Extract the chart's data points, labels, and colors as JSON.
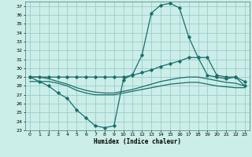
{
  "title": "",
  "xlabel": "Humidex (Indice chaleur)",
  "bg_color": "#cceee8",
  "grid_color": "#99cccc",
  "line_color": "#1a6e6a",
  "xlim": [
    -0.5,
    23.5
  ],
  "ylim": [
    23,
    37.5
  ],
  "xticks": [
    0,
    1,
    2,
    3,
    4,
    5,
    6,
    7,
    8,
    9,
    10,
    11,
    12,
    13,
    14,
    15,
    16,
    17,
    18,
    19,
    20,
    21,
    22,
    23
  ],
  "yticks": [
    23,
    24,
    25,
    26,
    27,
    28,
    29,
    30,
    31,
    32,
    33,
    34,
    35,
    36,
    37
  ],
  "line1_x": [
    0,
    1,
    2,
    3,
    4,
    5,
    6,
    7,
    8,
    9,
    10,
    11,
    12,
    13,
    14,
    15,
    16,
    17,
    18,
    19,
    20,
    21,
    22,
    23
  ],
  "line1_y": [
    29.0,
    28.5,
    28.0,
    27.2,
    26.6,
    25.3,
    24.4,
    23.5,
    23.3,
    23.5,
    28.7,
    29.3,
    31.5,
    36.2,
    37.1,
    37.3,
    36.8,
    33.5,
    31.2,
    29.2,
    29.0,
    28.8,
    29.0,
    28.0
  ],
  "line2_x": [
    0,
    1,
    2,
    3,
    4,
    5,
    6,
    7,
    8,
    9,
    10,
    11,
    12,
    13,
    14,
    15,
    16,
    17,
    18,
    19,
    20,
    21,
    22,
    23
  ],
  "line2_y": [
    29.0,
    29.0,
    29.0,
    29.0,
    29.0,
    29.0,
    29.0,
    29.0,
    29.0,
    29.0,
    29.0,
    29.2,
    29.5,
    29.8,
    30.2,
    30.5,
    30.8,
    31.2,
    31.2,
    31.2,
    29.2,
    29.0,
    29.0,
    28.5
  ],
  "line3_x": [
    0,
    1,
    2,
    3,
    4,
    5,
    6,
    7,
    8,
    9,
    10,
    11,
    12,
    13,
    14,
    15,
    16,
    17,
    18,
    19,
    20,
    21,
    22,
    23
  ],
  "line3_y": [
    28.5,
    28.5,
    28.5,
    28.3,
    28.0,
    27.5,
    27.2,
    27.0,
    27.0,
    27.0,
    27.2,
    27.4,
    27.6,
    27.8,
    28.0,
    28.2,
    28.3,
    28.4,
    28.4,
    28.2,
    28.0,
    27.9,
    27.8,
    27.8
  ],
  "line4_x": [
    0,
    1,
    2,
    3,
    4,
    5,
    6,
    7,
    8,
    9,
    10,
    11,
    12,
    13,
    14,
    15,
    16,
    17,
    18,
    19,
    20,
    21,
    22,
    23
  ],
  "line4_y": [
    29.0,
    29.0,
    28.8,
    28.5,
    28.2,
    27.8,
    27.5,
    27.3,
    27.2,
    27.2,
    27.4,
    27.6,
    27.9,
    28.2,
    28.5,
    28.7,
    28.9,
    29.0,
    29.0,
    28.8,
    28.6,
    28.4,
    28.3,
    28.0
  ]
}
